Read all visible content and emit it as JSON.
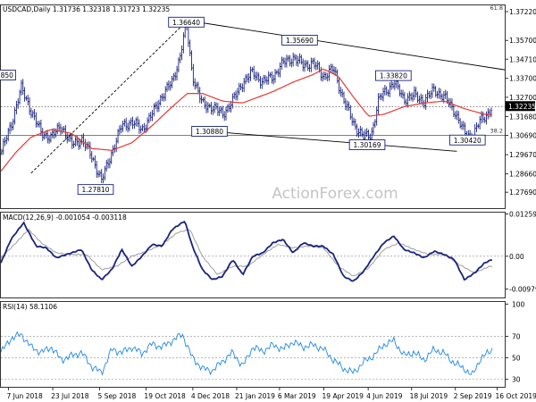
{
  "chart_data": [
    {
      "id": "price",
      "type": "candlestick",
      "title": "USDCAD,Daily  1.31736 1.32318 1.31723 1.32235",
      "ylim": [
        1.2685,
        1.3755
      ],
      "y_ticks": [
        "1.37220",
        "1.35700",
        "1.34710",
        "1.33700",
        "1.32700",
        "1.31680",
        "1.30690",
        "1.29670",
        "1.28660",
        "1.27690"
      ],
      "last_price": "1.32235",
      "fib_labels": [
        {
          "text": "61.8",
          "y": 1.3785
        },
        {
          "text": "38.2",
          "y": 1.3083
        }
      ],
      "swing_labels": [
        {
          "text": "1.36640",
          "x": 0.368,
          "y": 1.3664
        },
        {
          "text": "1.35690",
          "x": 0.593,
          "y": 1.3569
        },
        {
          "text": "1.33820",
          "x": 0.779,
          "y": 1.3382
        },
        {
          "text": "1.30880",
          "x": 0.414,
          "y": 1.3088
        },
        {
          "text": "1.30169",
          "x": 0.727,
          "y": 1.3017
        },
        {
          "text": "1.30420",
          "x": 0.926,
          "y": 1.3042
        },
        {
          "text": "1.27810",
          "x": 0.188,
          "y": 1.2781
        },
        {
          "text": "850",
          "x": 0.012,
          "y": 1.3385
        }
      ],
      "trendlines": [
        {
          "from": [
            0.06,
            1.287
          ],
          "to": [
            0.37,
            1.3675
          ],
          "style": "dashed"
        },
        {
          "from": [
            0.37,
            1.3675
          ],
          "to": [
            1.0,
            1.3415
          ],
          "style": "solid"
        },
        {
          "from": [
            0.443,
            1.3084
          ],
          "to": [
            0.905,
            1.2985
          ],
          "style": "solid"
        }
      ],
      "hlines": [
        {
          "y": 1.322,
          "style": "dotted"
        },
        {
          "y": 1.3069,
          "style": "solid"
        }
      ],
      "close_anchors": [
        [
          0.0,
          1.2975
        ],
        [
          0.02,
          1.312
        ],
        [
          0.04,
          1.332
        ],
        [
          0.06,
          1.32
        ],
        [
          0.08,
          1.308
        ],
        [
          0.1,
          1.306
        ],
        [
          0.12,
          1.312
        ],
        [
          0.14,
          1.302
        ],
        [
          0.16,
          1.305
        ],
        [
          0.18,
          1.296
        ],
        [
          0.2,
          1.283
        ],
        [
          0.22,
          1.298
        ],
        [
          0.24,
          1.312
        ],
        [
          0.26,
          1.314
        ],
        [
          0.28,
          1.31
        ],
        [
          0.3,
          1.318
        ],
        [
          0.32,
          1.328
        ],
        [
          0.34,
          1.335
        ],
        [
          0.355,
          1.348
        ],
        [
          0.368,
          1.366
        ],
        [
          0.38,
          1.339
        ],
        [
          0.4,
          1.323
        ],
        [
          0.42,
          1.322
        ],
        [
          0.44,
          1.318
        ],
        [
          0.46,
          1.325
        ],
        [
          0.48,
          1.335
        ],
        [
          0.5,
          1.34
        ],
        [
          0.52,
          1.335
        ],
        [
          0.54,
          1.338
        ],
        [
          0.56,
          1.345
        ],
        [
          0.58,
          1.348
        ],
        [
          0.6,
          1.344
        ],
        [
          0.62,
          1.345
        ],
        [
          0.64,
          1.338
        ],
        [
          0.66,
          1.342
        ],
        [
          0.68,
          1.326
        ],
        [
          0.7,
          1.313
        ],
        [
          0.72,
          1.306
        ],
        [
          0.735,
          1.307
        ],
        [
          0.75,
          1.326
        ],
        [
          0.77,
          1.332
        ],
        [
          0.78,
          1.335
        ],
        [
          0.8,
          1.326
        ],
        [
          0.82,
          1.328
        ],
        [
          0.84,
          1.325
        ],
        [
          0.86,
          1.331
        ],
        [
          0.88,
          1.327
        ],
        [
          0.9,
          1.32
        ],
        [
          0.92,
          1.308
        ],
        [
          0.935,
          1.306
        ],
        [
          0.95,
          1.314
        ],
        [
          0.965,
          1.318
        ],
        [
          0.975,
          1.322
        ]
      ],
      "ma_anchors": [
        [
          0.0,
          1.288
        ],
        [
          0.03,
          1.298
        ],
        [
          0.06,
          1.306
        ],
        [
          0.1,
          1.31
        ],
        [
          0.14,
          1.308
        ],
        [
          0.18,
          1.3
        ],
        [
          0.22,
          1.299
        ],
        [
          0.26,
          1.303
        ],
        [
          0.3,
          1.312
        ],
        [
          0.34,
          1.322
        ],
        [
          0.37,
          1.329
        ],
        [
          0.4,
          1.329
        ],
        [
          0.44,
          1.325
        ],
        [
          0.48,
          1.324
        ],
        [
          0.5,
          1.326
        ],
        [
          0.54,
          1.33
        ],
        [
          0.58,
          1.335
        ],
        [
          0.62,
          1.339
        ],
        [
          0.64,
          1.342
        ],
        [
          0.67,
          1.338
        ],
        [
          0.7,
          1.327
        ],
        [
          0.73,
          1.317
        ],
        [
          0.76,
          1.318
        ],
        [
          0.8,
          1.322
        ],
        [
          0.84,
          1.324
        ],
        [
          0.88,
          1.325
        ],
        [
          0.92,
          1.321
        ],
        [
          0.96,
          1.318
        ],
        [
          0.975,
          1.318
        ]
      ]
    },
    {
      "id": "macd",
      "type": "line",
      "title": "MACD(12,26,9) -0.001054 -0.003118",
      "ylim": [
        -0.0123,
        0.013
      ],
      "y_ticks": [
        "0.012599",
        "0.00",
        "-0.00979"
      ],
      "series": [
        {
          "color": "#1a237e",
          "anchors": [
            [
              0.0,
              -0.002
            ],
            [
              0.02,
              0.005
            ],
            [
              0.045,
              0.01
            ],
            [
              0.07,
              0.003
            ],
            [
              0.09,
              0.0025
            ],
            [
              0.11,
              -0.0005
            ],
            [
              0.13,
              0.0005
            ],
            [
              0.16,
              0.002
            ],
            [
              0.18,
              -0.004
            ],
            [
              0.2,
              -0.007
            ],
            [
              0.22,
              -0.004
            ],
            [
              0.24,
              0.002
            ],
            [
              0.26,
              -0.003
            ],
            [
              0.28,
              0.0
            ],
            [
              0.3,
              0.0035
            ],
            [
              0.32,
              0.003
            ],
            [
              0.34,
              0.008
            ],
            [
              0.365,
              0.0105
            ],
            [
              0.38,
              0.003
            ],
            [
              0.4,
              -0.004
            ],
            [
              0.42,
              -0.007
            ],
            [
              0.44,
              -0.006
            ],
            [
              0.46,
              -0.001
            ],
            [
              0.48,
              -0.0055
            ],
            [
              0.5,
              0.0
            ],
            [
              0.52,
              0.001
            ],
            [
              0.54,
              0.004
            ],
            [
              0.56,
              0.005
            ],
            [
              0.58,
              0.001
            ],
            [
              0.6,
              0.004
            ],
            [
              0.62,
              0.003
            ],
            [
              0.64,
              0.003
            ],
            [
              0.66,
              0.0005
            ],
            [
              0.68,
              -0.006
            ],
            [
              0.7,
              -0.0075
            ],
            [
              0.72,
              -0.0045
            ],
            [
              0.74,
              0.0
            ],
            [
              0.76,
              0.004
            ],
            [
              0.78,
              0.006
            ],
            [
              0.8,
              0.002
            ],
            [
              0.82,
              0.001
            ],
            [
              0.84,
              -0.0005
            ],
            [
              0.86,
              0.0015
            ],
            [
              0.88,
              0.0005
            ],
            [
              0.9,
              -0.001
            ],
            [
              0.92,
              -0.007
            ],
            [
              0.94,
              -0.005
            ],
            [
              0.96,
              -0.002
            ],
            [
              0.975,
              -0.001
            ]
          ]
        },
        {
          "color": "#9e9e9e",
          "anchors": [
            [
              0.0,
              -0.0005
            ],
            [
              0.03,
              0.004
            ],
            [
              0.055,
              0.008
            ],
            [
              0.08,
              0.004
            ],
            [
              0.11,
              0.001
            ],
            [
              0.14,
              0.0005
            ],
            [
              0.17,
              0.0005
            ],
            [
              0.2,
              -0.004
            ],
            [
              0.23,
              -0.003
            ],
            [
              0.26,
              0.0
            ],
            [
              0.29,
              0.0015
            ],
            [
              0.32,
              0.0035
            ],
            [
              0.35,
              0.007
            ],
            [
              0.375,
              0.008
            ],
            [
              0.4,
              0.0
            ],
            [
              0.43,
              -0.0055
            ],
            [
              0.46,
              -0.003
            ],
            [
              0.49,
              -0.003
            ],
            [
              0.52,
              0.0005
            ],
            [
              0.55,
              0.0035
            ],
            [
              0.58,
              0.0025
            ],
            [
              0.61,
              0.003
            ],
            [
              0.64,
              0.0025
            ],
            [
              0.67,
              -0.003
            ],
            [
              0.7,
              -0.006
            ],
            [
              0.73,
              -0.0035
            ],
            [
              0.76,
              0.002
            ],
            [
              0.79,
              0.004
            ],
            [
              0.82,
              0.002
            ],
            [
              0.85,
              0.0005
            ],
            [
              0.88,
              0.0005
            ],
            [
              0.91,
              -0.0025
            ],
            [
              0.94,
              -0.005
            ],
            [
              0.97,
              -0.003
            ],
            [
              0.975,
              -0.0031
            ]
          ]
        }
      ]
    },
    {
      "id": "rsi",
      "type": "line",
      "title": "RSI(14) 58.1106",
      "ylim": [
        23,
        102
      ],
      "y_ticks": [
        "100",
        "70",
        "50",
        "30"
      ],
      "levels": [
        70,
        50,
        30
      ],
      "series": [
        {
          "color": "#1e88e5",
          "anchors": [
            [
              0.0,
              55
            ],
            [
              0.02,
              68
            ],
            [
              0.04,
              72
            ],
            [
              0.06,
              60
            ],
            [
              0.08,
              55
            ],
            [
              0.1,
              60
            ],
            [
              0.12,
              48
            ],
            [
              0.14,
              52
            ],
            [
              0.16,
              55
            ],
            [
              0.18,
              42
            ],
            [
              0.2,
              36
            ],
            [
              0.22,
              58
            ],
            [
              0.24,
              55
            ],
            [
              0.26,
              60
            ],
            [
              0.28,
              54
            ],
            [
              0.3,
              63
            ],
            [
              0.32,
              60
            ],
            [
              0.34,
              66
            ],
            [
              0.36,
              72
            ],
            [
              0.38,
              50
            ],
            [
              0.4,
              40
            ],
            [
              0.42,
              38
            ],
            [
              0.44,
              47
            ],
            [
              0.46,
              55
            ],
            [
              0.48,
              42
            ],
            [
              0.5,
              60
            ],
            [
              0.52,
              56
            ],
            [
              0.54,
              62
            ],
            [
              0.56,
              58
            ],
            [
              0.58,
              65
            ],
            [
              0.6,
              60
            ],
            [
              0.62,
              62
            ],
            [
              0.64,
              58
            ],
            [
              0.66,
              48
            ],
            [
              0.68,
              40
            ],
            [
              0.7,
              36
            ],
            [
              0.72,
              46
            ],
            [
              0.74,
              52
            ],
            [
              0.76,
              62
            ],
            [
              0.78,
              66
            ],
            [
              0.8,
              52
            ],
            [
              0.82,
              55
            ],
            [
              0.84,
              48
            ],
            [
              0.86,
              58
            ],
            [
              0.88,
              54
            ],
            [
              0.9,
              45
            ],
            [
              0.92,
              40
            ],
            [
              0.935,
              33
            ],
            [
              0.95,
              48
            ],
            [
              0.965,
              54
            ],
            [
              0.975,
              58
            ]
          ]
        }
      ]
    }
  ],
  "x_ticks": [
    "7 Jun 2018",
    "23 Jul 2018",
    "5 Sep 2018",
    "19 Oct 2018",
    "4 Dec 2018",
    "21 Jan 2019",
    "6 Mar 2019",
    "19 Apr 2019",
    "4 Jun 2019",
    "18 Jul 2019",
    "2 Sep 2019",
    "16 Oct 2019"
  ],
  "watermark": "ActionForex.com",
  "colors": {
    "candle": "#1a237e",
    "ma": "#e53935",
    "trend": "#000000",
    "grid": "#cfcfcf",
    "label_box": "#1a237e"
  }
}
